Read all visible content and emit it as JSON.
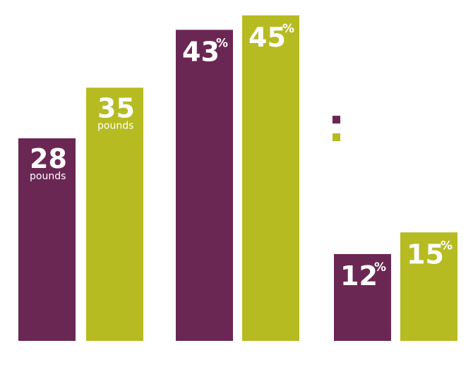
{
  "chart_data": {
    "type": "bar",
    "title": "",
    "xlabel": "",
    "ylabel": "",
    "legend_position": "right",
    "grid": false,
    "groups": [
      {
        "name": "",
        "unit": "pounds",
        "values": [
          28,
          35
        ],
        "labels": [
          "28",
          "35"
        ],
        "unit_labels": [
          "pounds",
          "pounds"
        ],
        "ylim": [
          0,
          40
        ]
      },
      {
        "name": "",
        "unit": "%",
        "values": [
          43,
          45
        ],
        "labels": [
          "43",
          "45"
        ],
        "unit_labels": [
          "%",
          "%"
        ],
        "ylim": [
          0,
          45
        ]
      },
      {
        "name": "",
        "unit": "%",
        "values": [
          12,
          15
        ],
        "labels": [
          "12",
          "15"
        ],
        "unit_labels": [
          "%",
          "%"
        ],
        "ylim": [
          0,
          45
        ]
      }
    ],
    "series": [
      {
        "name": "",
        "color": "#6b2754"
      },
      {
        "name": "",
        "color": "#b6bb22"
      }
    ]
  }
}
